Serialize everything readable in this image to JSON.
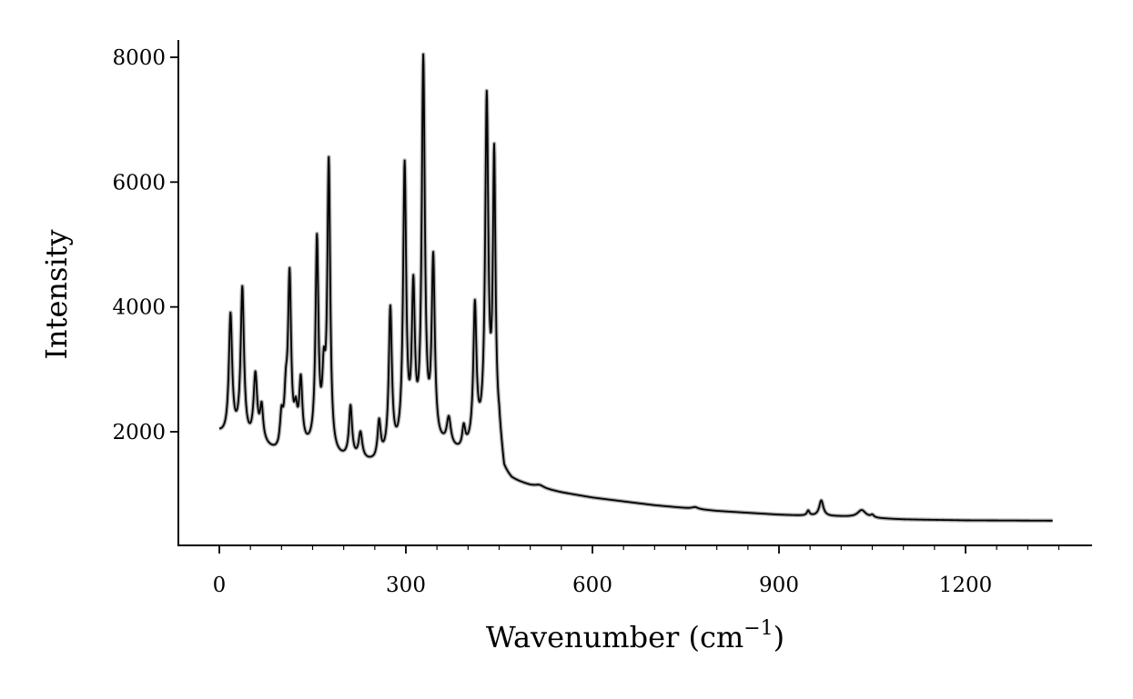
{
  "chart_data": {
    "type": "line",
    "title": "",
    "xlabel": "Wavenumber (cm",
    "xlabel_sup": "−1",
    "xlabel_close": ")",
    "ylabel": "Intensity",
    "xlim": [
      -65,
      1400
    ],
    "ylim": [
      250,
      8300
    ],
    "x_ticks": [
      0,
      300,
      600,
      900,
      1200
    ],
    "x_tick_labels": [
      "0",
      "300",
      "600",
      "900",
      "1200"
    ],
    "x_minor_step": 50,
    "y_ticks": [
      2000,
      4000,
      6000,
      8000
    ],
    "y_tick_labels": [
      "2000",
      "4000",
      "6000",
      "8000"
    ],
    "grid": false,
    "legend": "none",
    "colors": {
      "main_line": "#000000",
      "shadow_line": "#b0b0b0"
    },
    "x_range": [
      0,
      1340
    ],
    "baseline_points": [
      [
        0,
        1960
      ],
      [
        12,
        1880
      ],
      [
        30,
        1860
      ],
      [
        50,
        1780
      ],
      [
        75,
        1720
      ],
      [
        95,
        1600
      ],
      [
        130,
        1700
      ],
      [
        160,
        1650
      ],
      [
        185,
        1530
      ],
      [
        210,
        1520
      ],
      [
        250,
        1470
      ],
      [
        280,
        1560
      ],
      [
        330,
        1700
      ],
      [
        360,
        1700
      ],
      [
        390,
        1620
      ],
      [
        450,
        1900
      ],
      [
        458,
        1300
      ],
      [
        470,
        1200
      ],
      [
        500,
        1120
      ],
      [
        550,
        1020
      ],
      [
        600,
        940
      ],
      [
        700,
        820
      ],
      [
        800,
        730
      ],
      [
        900,
        670
      ],
      [
        950,
        650
      ],
      [
        1000,
        640
      ],
      [
        1060,
        610
      ],
      [
        1100,
        595
      ],
      [
        1200,
        580
      ],
      [
        1340,
        575
      ]
    ],
    "peaks": [
      {
        "x": 18,
        "height": 1950,
        "width": 3.2
      },
      {
        "x": 37,
        "height": 2400,
        "width": 3.2
      },
      {
        "x": 58,
        "height": 1070,
        "width": 3.5
      },
      {
        "x": 68,
        "height": 560,
        "width": 3.0
      },
      {
        "x": 100,
        "height": 500,
        "width": 3.0
      },
      {
        "x": 107,
        "height": 700,
        "width": 3.0
      },
      {
        "x": 113,
        "height": 2700,
        "width": 3.0
      },
      {
        "x": 123,
        "height": 450,
        "width": 3.0
      },
      {
        "x": 131,
        "height": 1000,
        "width": 3.0
      },
      {
        "x": 157,
        "height": 3300,
        "width": 2.8
      },
      {
        "x": 168,
        "height": 1000,
        "width": 3.0
      },
      {
        "x": 176,
        "height": 4600,
        "width": 2.8
      },
      {
        "x": 211,
        "height": 820,
        "width": 3.0
      },
      {
        "x": 227,
        "height": 420,
        "width": 3.5
      },
      {
        "x": 257,
        "height": 590,
        "width": 3.0
      },
      {
        "x": 275,
        "height": 2330,
        "width": 3.0
      },
      {
        "x": 298,
        "height": 4500,
        "width": 3.0
      },
      {
        "x": 312,
        "height": 2400,
        "width": 3.0
      },
      {
        "x": 328,
        "height": 6100,
        "width": 3.0
      },
      {
        "x": 344,
        "height": 2900,
        "width": 3.0
      },
      {
        "x": 369,
        "height": 450,
        "width": 4.0
      },
      {
        "x": 393,
        "height": 350,
        "width": 3.0
      },
      {
        "x": 411,
        "height": 2200,
        "width": 3.0
      },
      {
        "x": 430,
        "height": 5400,
        "width": 3.0
      },
      {
        "x": 442,
        "height": 4400,
        "width": 2.5
      },
      {
        "x": 515,
        "height": 40,
        "width": 8.0
      },
      {
        "x": 765,
        "height": 30,
        "width": 6.0
      },
      {
        "x": 947,
        "height": 80,
        "width": 2.5
      },
      {
        "x": 968,
        "height": 250,
        "width": 4.0
      },
      {
        "x": 1033,
        "height": 120,
        "width": 8.0
      },
      {
        "x": 1050,
        "height": 40,
        "width": 3.0
      }
    ]
  }
}
